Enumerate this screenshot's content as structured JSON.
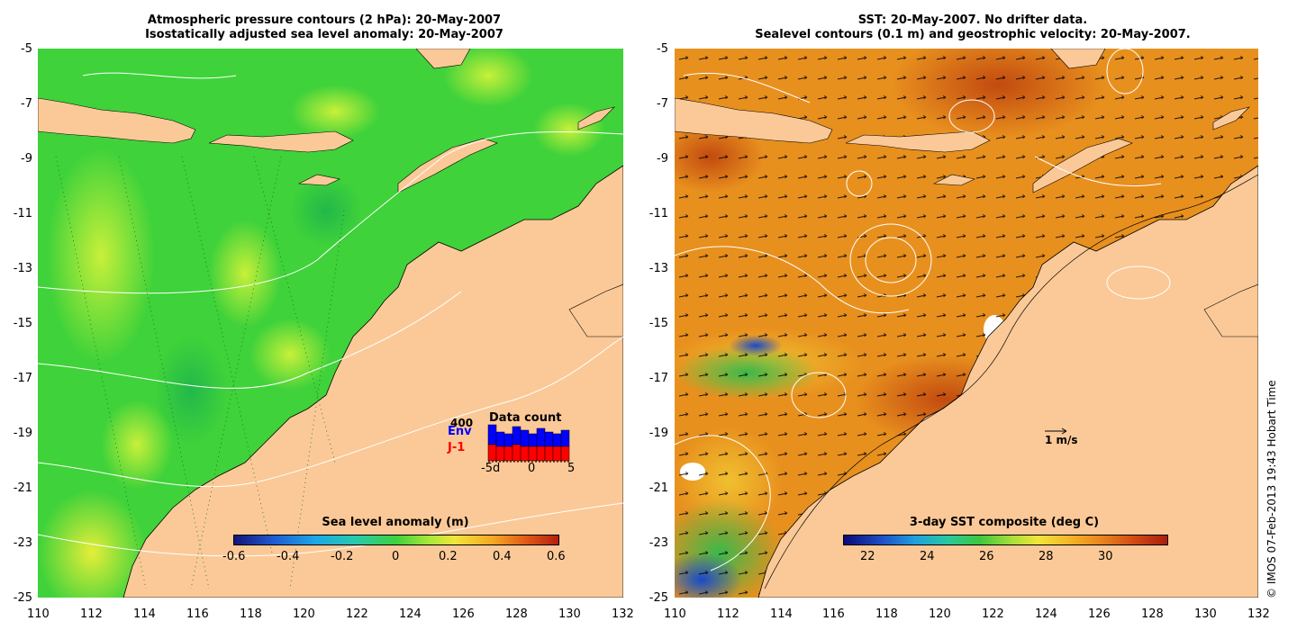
{
  "left_panel": {
    "title_line1": "Atmospheric pressure contours (2 hPa): 20-May-2007",
    "title_line2": "Isostatically adjusted sea level anomaly: 20-May-2007",
    "x_ticks": [
      "110",
      "112",
      "114",
      "116",
      "118",
      "120",
      "122",
      "124",
      "126",
      "128",
      "130",
      "132"
    ],
    "y_ticks": [
      "-5",
      "-7",
      "-9",
      "-11",
      "-13",
      "-15",
      "-17",
      "-19",
      "-21",
      "-23",
      "-25"
    ],
    "colorbar": {
      "label": "Sea level anomaly (m)",
      "ticks": [
        "-0.6",
        "-0.4",
        "-0.2",
        "0",
        "0.2",
        "0.4",
        "0.6"
      ],
      "range": [
        -0.6,
        0.6
      ]
    },
    "inset": {
      "title": "Data count",
      "legend_g": "400",
      "legend_env": "Env",
      "legend_j1": "J-1",
      "x_ticks": [
        "-5d",
        "0",
        "5"
      ],
      "env_color": "#0000ff",
      "j1_color": "#ff0000"
    }
  },
  "right_panel": {
    "title_line1": "SST: 20-May-2007. No drifter data.",
    "title_line2": "Sealevel contours (0.1 m) and geostrophic velocity: 20-May-2007.",
    "x_ticks": [
      "110",
      "112",
      "114",
      "116",
      "118",
      "120",
      "122",
      "124",
      "126",
      "128",
      "130",
      "132"
    ],
    "y_ticks": [
      "-5",
      "-7",
      "-9",
      "-11",
      "-13",
      "-15",
      "-17",
      "-19",
      "-21",
      "-23",
      "-25"
    ],
    "colorbar": {
      "label": "3-day SST composite (deg C)",
      "ticks": [
        "22",
        "24",
        "26",
        "28",
        "30"
      ],
      "range": [
        21,
        31.8
      ]
    },
    "scale_label": "1 m/s"
  },
  "credit": "© IMOS 07-Feb-2013 19:43 Hobart Time",
  "colors": {
    "land": "#fbc997",
    "ocean_left": "#3fd23a",
    "ocean_right": "#e8901e"
  }
}
